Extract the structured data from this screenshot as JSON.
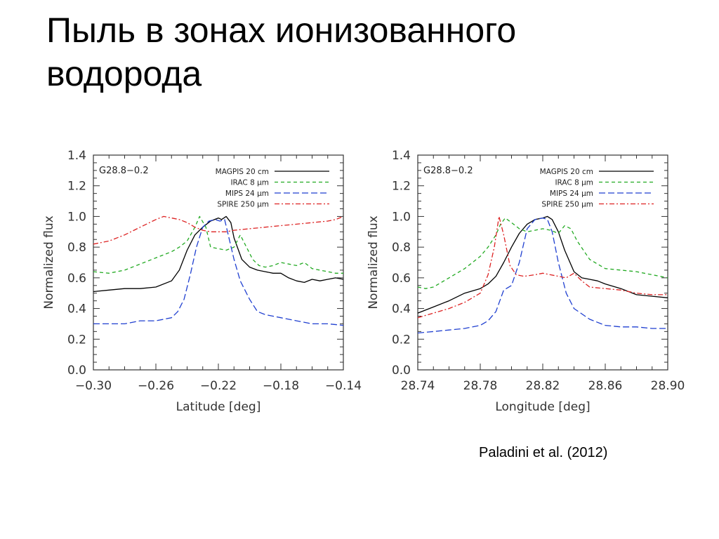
{
  "slide": {
    "title": "Пыль в зонах ионизованного водорода",
    "citation": "Paladini et al. (2012)"
  },
  "chart_data": [
    {
      "type": "line",
      "panel_label": "G28.8−0.2",
      "xlabel": "Latitude [deg]",
      "ylabel": "Normalized flux",
      "xlim": [
        -0.3,
        -0.14
      ],
      "ylim": [
        0.0,
        1.4
      ],
      "x_ticks": [
        "−0.30",
        "−0.26",
        "−0.22",
        "−0.18",
        "−0.14"
      ],
      "x_tick_values": [
        -0.3,
        -0.26,
        -0.22,
        -0.18,
        -0.14
      ],
      "y_ticks": [
        "0.0",
        "0.2",
        "0.4",
        "0.6",
        "0.8",
        "1.0",
        "1.2",
        "1.4"
      ],
      "y_tick_values": [
        0.0,
        0.2,
        0.4,
        0.6,
        0.8,
        1.0,
        1.2,
        1.4
      ],
      "legend_position": "top-right",
      "series": [
        {
          "name": "MAGPIS 20 cm",
          "color": "#000000",
          "dash": "solid",
          "x": [
            -0.3,
            -0.29,
            -0.28,
            -0.27,
            -0.26,
            -0.25,
            -0.245,
            -0.24,
            -0.235,
            -0.23,
            -0.225,
            -0.22,
            -0.218,
            -0.215,
            -0.212,
            -0.21,
            -0.205,
            -0.2,
            -0.195,
            -0.19,
            -0.185,
            -0.18,
            -0.175,
            -0.17,
            -0.165,
            -0.16,
            -0.155,
            -0.15,
            -0.145,
            -0.14
          ],
          "y": [
            0.51,
            0.52,
            0.53,
            0.53,
            0.54,
            0.58,
            0.65,
            0.78,
            0.88,
            0.93,
            0.97,
            0.99,
            0.98,
            1.0,
            0.96,
            0.86,
            0.72,
            0.67,
            0.65,
            0.64,
            0.63,
            0.63,
            0.6,
            0.58,
            0.57,
            0.59,
            0.58,
            0.59,
            0.6,
            0.59
          ]
        },
        {
          "name": "IRAC 8 μm",
          "color": "#22aa22",
          "dash": "5,4",
          "x": [
            -0.3,
            -0.29,
            -0.28,
            -0.27,
            -0.26,
            -0.25,
            -0.245,
            -0.24,
            -0.235,
            -0.232,
            -0.228,
            -0.225,
            -0.22,
            -0.215,
            -0.21,
            -0.206,
            -0.202,
            -0.198,
            -0.194,
            -0.19,
            -0.185,
            -0.18,
            -0.175,
            -0.17,
            -0.165,
            -0.16,
            -0.155,
            -0.15,
            -0.145,
            -0.14
          ],
          "y": [
            0.64,
            0.63,
            0.65,
            0.69,
            0.73,
            0.77,
            0.8,
            0.84,
            0.93,
            1.0,
            0.93,
            0.8,
            0.79,
            0.78,
            0.8,
            0.88,
            0.8,
            0.72,
            0.68,
            0.67,
            0.68,
            0.7,
            0.69,
            0.68,
            0.7,
            0.66,
            0.65,
            0.64,
            0.63,
            0.63
          ]
        },
        {
          "name": "MIPS 24 μm",
          "color": "#1f3fd0",
          "dash": "9,4",
          "x": [
            -0.3,
            -0.29,
            -0.28,
            -0.27,
            -0.26,
            -0.25,
            -0.246,
            -0.242,
            -0.238,
            -0.234,
            -0.23,
            -0.226,
            -0.222,
            -0.219,
            -0.216,
            -0.213,
            -0.21,
            -0.206,
            -0.2,
            -0.195,
            -0.19,
            -0.185,
            -0.18,
            -0.17,
            -0.16,
            -0.15,
            -0.14
          ],
          "y": [
            0.3,
            0.3,
            0.3,
            0.32,
            0.32,
            0.34,
            0.38,
            0.46,
            0.62,
            0.8,
            0.93,
            0.97,
            0.98,
            0.97,
            0.98,
            0.85,
            0.72,
            0.58,
            0.46,
            0.38,
            0.36,
            0.35,
            0.34,
            0.32,
            0.3,
            0.3,
            0.29
          ]
        },
        {
          "name": "SPIRE 250 μm",
          "color": "#dd2222",
          "dash": "7,3,2,3",
          "x": [
            -0.3,
            -0.29,
            -0.28,
            -0.27,
            -0.26,
            -0.255,
            -0.25,
            -0.245,
            -0.24,
            -0.235,
            -0.23,
            -0.225,
            -0.22,
            -0.215,
            -0.21,
            -0.2,
            -0.19,
            -0.18,
            -0.17,
            -0.16,
            -0.15,
            -0.145,
            -0.14
          ],
          "y": [
            0.82,
            0.84,
            0.88,
            0.93,
            0.98,
            1.0,
            0.99,
            0.98,
            0.96,
            0.93,
            0.91,
            0.9,
            0.9,
            0.9,
            0.91,
            0.92,
            0.93,
            0.94,
            0.95,
            0.96,
            0.97,
            0.98,
            1.0
          ]
        }
      ]
    },
    {
      "type": "line",
      "panel_label": "G28.8−0.2",
      "xlabel": "Longitude [deg]",
      "ylabel": "Normalized flux",
      "xlim": [
        28.74,
        28.9
      ],
      "ylim": [
        0.0,
        1.4
      ],
      "x_ticks": [
        "28.74",
        "28.78",
        "28.82",
        "28.86",
        "28.90"
      ],
      "x_tick_values": [
        28.74,
        28.78,
        28.82,
        28.86,
        28.9
      ],
      "y_ticks": [
        "0.0",
        "0.2",
        "0.4",
        "0.6",
        "0.8",
        "1.0",
        "1.2",
        "1.4"
      ],
      "y_tick_values": [
        0.0,
        0.2,
        0.4,
        0.6,
        0.8,
        1.0,
        1.2,
        1.4
      ],
      "legend_position": "top-right",
      "series": [
        {
          "name": "MAGPIS 20 cm",
          "color": "#000000",
          "dash": "solid",
          "x": [
            28.74,
            28.75,
            28.76,
            28.77,
            28.78,
            28.785,
            28.79,
            28.795,
            28.8,
            28.805,
            28.81,
            28.815,
            28.82,
            28.823,
            28.826,
            28.83,
            28.834,
            28.84,
            28.845,
            28.85,
            28.855,
            28.86,
            28.87,
            28.88,
            28.89,
            28.9
          ],
          "y": [
            0.37,
            0.41,
            0.45,
            0.5,
            0.53,
            0.56,
            0.61,
            0.7,
            0.8,
            0.89,
            0.95,
            0.98,
            0.99,
            1.0,
            0.98,
            0.9,
            0.78,
            0.64,
            0.6,
            0.59,
            0.58,
            0.56,
            0.53,
            0.49,
            0.48,
            0.47
          ]
        },
        {
          "name": "IRAC 8 μm",
          "color": "#22aa22",
          "dash": "5,4",
          "x": [
            28.74,
            28.745,
            28.75,
            28.76,
            28.77,
            28.78,
            28.785,
            28.79,
            28.793,
            28.796,
            28.8,
            28.805,
            28.81,
            28.815,
            28.82,
            28.825,
            28.83,
            28.834,
            28.838,
            28.842,
            28.846,
            28.85,
            28.86,
            28.87,
            28.88,
            28.89,
            28.9
          ],
          "y": [
            0.54,
            0.53,
            0.54,
            0.6,
            0.66,
            0.74,
            0.8,
            0.88,
            0.95,
            0.99,
            0.96,
            0.92,
            0.9,
            0.91,
            0.92,
            0.91,
            0.89,
            0.94,
            0.92,
            0.84,
            0.78,
            0.72,
            0.66,
            0.65,
            0.64,
            0.62,
            0.6
          ]
        },
        {
          "name": "MIPS 24 μm",
          "color": "#1f3fd0",
          "dash": "9,4",
          "x": [
            28.74,
            28.75,
            28.76,
            28.77,
            28.78,
            28.785,
            28.79,
            28.795,
            28.8,
            28.805,
            28.81,
            28.815,
            28.82,
            28.823,
            28.826,
            28.83,
            28.835,
            28.84,
            28.85,
            28.86,
            28.87,
            28.88,
            28.89,
            28.9
          ],
          "y": [
            0.24,
            0.25,
            0.26,
            0.27,
            0.29,
            0.32,
            0.38,
            0.52,
            0.55,
            0.7,
            0.92,
            0.98,
            0.99,
            0.98,
            0.9,
            0.7,
            0.5,
            0.4,
            0.33,
            0.29,
            0.28,
            0.28,
            0.27,
            0.27
          ]
        },
        {
          "name": "SPIRE 250 μm",
          "color": "#dd2222",
          "dash": "7,3,2,3",
          "x": [
            28.74,
            28.75,
            28.76,
            28.77,
            28.78,
            28.785,
            28.789,
            28.792,
            28.795,
            28.799,
            28.803,
            28.808,
            28.815,
            28.82,
            28.825,
            28.83,
            28.835,
            28.84,
            28.845,
            28.85,
            28.86,
            28.87,
            28.88,
            28.89,
            28.9
          ],
          "y": [
            0.34,
            0.37,
            0.4,
            0.44,
            0.5,
            0.62,
            0.8,
            1.0,
            0.88,
            0.68,
            0.62,
            0.61,
            0.62,
            0.63,
            0.62,
            0.61,
            0.6,
            0.63,
            0.58,
            0.54,
            0.53,
            0.52,
            0.5,
            0.49,
            0.49
          ]
        }
      ]
    }
  ]
}
